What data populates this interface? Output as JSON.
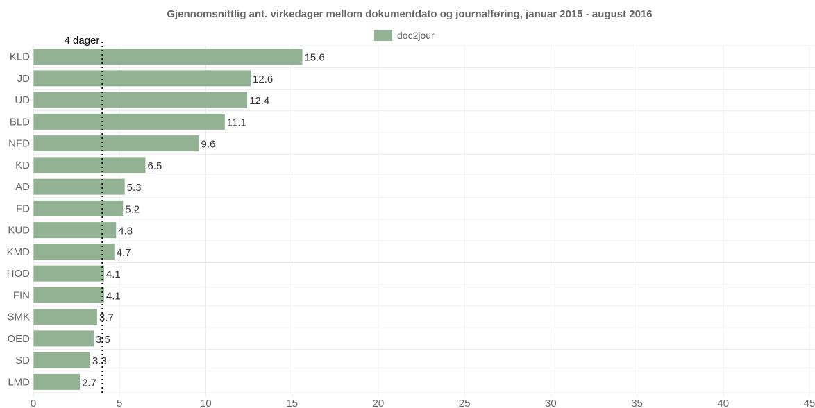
{
  "chart_data": {
    "type": "bar",
    "orientation": "horizontal",
    "title": "Gjennomsnittlig ant. virkedager mellom dokumentdato og journalføring, januar 2015 - august 2016",
    "categories": [
      "KLD",
      "JD",
      "UD",
      "BLD",
      "NFD",
      "KD",
      "AD",
      "FD",
      "KUD",
      "KMD",
      "HOD",
      "FIN",
      "SMK",
      "OED",
      "SD",
      "LMD"
    ],
    "series": [
      {
        "name": "doc2jour",
        "values": [
          15.6,
          12.6,
          12.4,
          11.1,
          9.6,
          6.5,
          5.3,
          5.2,
          4.8,
          4.7,
          4.1,
          4.1,
          3.7,
          3.5,
          3.3,
          2.7
        ],
        "color": "#93b293"
      }
    ],
    "data_labels": [
      "15.6",
      "12.6",
      "12.4",
      "11.1",
      "9.6",
      "6.5",
      "5.3",
      "5.2",
      "4.8",
      "4.7",
      "4.1",
      "4.1",
      "3.7",
      "3.5",
      "3.3",
      "2.7"
    ],
    "xlim": [
      0,
      45
    ],
    "x_ticks": [
      "0",
      "5",
      "10",
      "15",
      "20",
      "25",
      "30",
      "35",
      "40",
      "45"
    ],
    "xlabel": "",
    "ylabel": "",
    "grid": true,
    "legend": "top-center",
    "reference_line": {
      "value": 4,
      "label": "4 dager",
      "style": "dotted",
      "color": "#000000"
    }
  }
}
